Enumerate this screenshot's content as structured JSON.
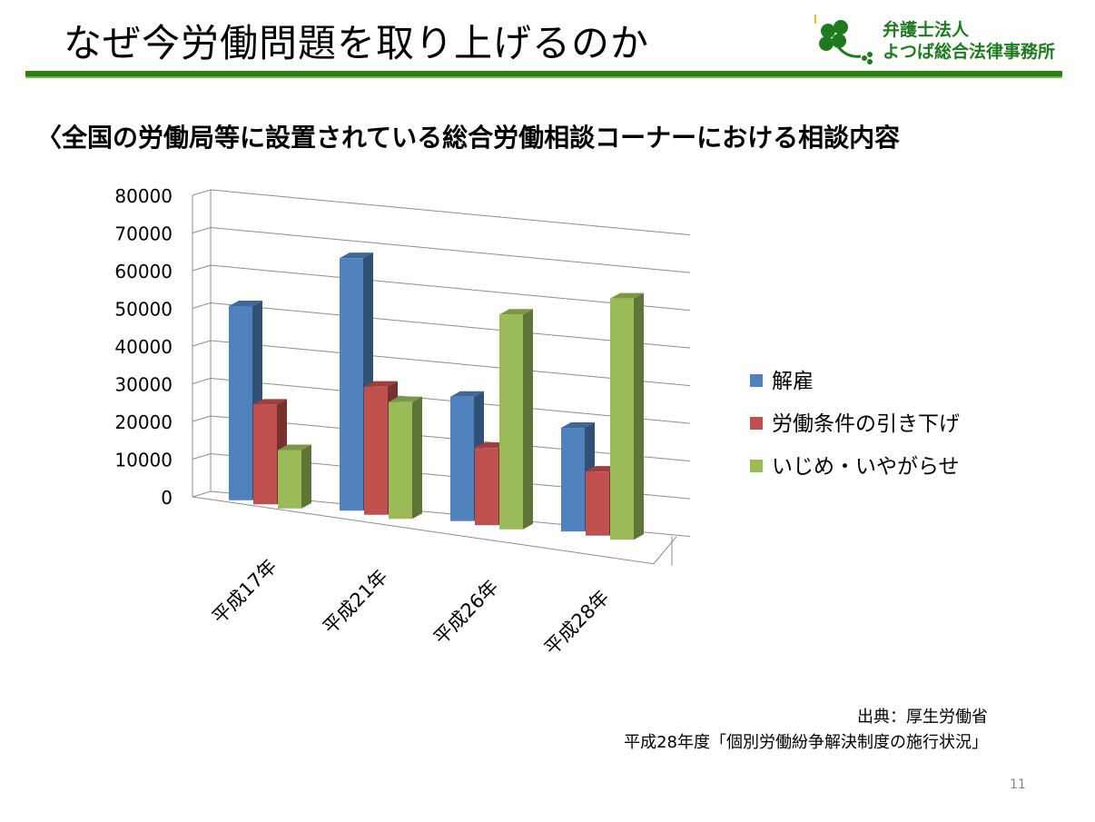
{
  "slide": {
    "title": "なぜ今労働問題を取り上げるのか",
    "subtitle": "〈全国の労働局等に設置されている総合労働相談コーナーにおける相談内容",
    "logo": {
      "line1": "弁護士法人",
      "line2": "よつば総合法律事務所",
      "icon": "four-leaf-clover-icon",
      "color": "#1f7a1f"
    },
    "source": {
      "line1": "出典：厚生労働省",
      "line2": "平成28年度「個別労働紛争解決制度の施行状況」"
    },
    "page_number": "11",
    "accent_color": "#2e7d12"
  },
  "chart_data": {
    "type": "bar",
    "style": "3d-clustered-column",
    "categories": [
      "平成17年",
      "平成21年",
      "平成26年",
      "平成28年"
    ],
    "series": [
      {
        "name": "解雇",
        "values": [
          51500,
          67000,
          33000,
          27500
        ],
        "color": "#4f81bd"
      },
      {
        "name": "労働条件の引き下げ",
        "values": [
          26500,
          34000,
          20500,
          17000
        ],
        "color": "#c0504d"
      },
      {
        "name": "いじめ・いやがらせ",
        "values": [
          15500,
          31000,
          57000,
          64000
        ],
        "color": "#9bbb59"
      }
    ],
    "ylim": [
      0,
      80000
    ],
    "yticks": [
      "0",
      "10000",
      "20000",
      "30000",
      "40000",
      "50000",
      "60000",
      "70000",
      "80000"
    ],
    "grid": true,
    "legend": "right"
  }
}
